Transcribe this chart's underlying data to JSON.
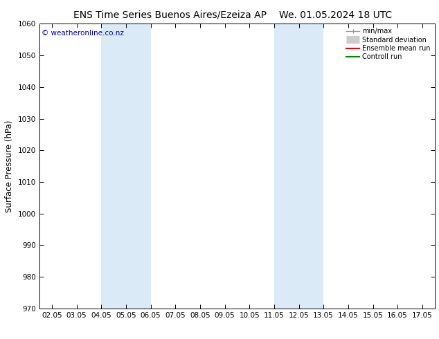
{
  "title_left": "ENS Time Series Buenos Aires/Ezeiza AP",
  "title_right": "We. 01.05.2024 18 UTC",
  "ylabel": "Surface Pressure (hPa)",
  "ylim": [
    970,
    1060
  ],
  "yticks": [
    970,
    980,
    990,
    1000,
    1010,
    1020,
    1030,
    1040,
    1050,
    1060
  ],
  "xtick_labels": [
    "02.05",
    "03.05",
    "04.05",
    "05.05",
    "06.05",
    "07.05",
    "08.05",
    "09.05",
    "10.05",
    "11.05",
    "12.05",
    "13.05",
    "14.05",
    "15.05",
    "16.05",
    "17.05"
  ],
  "xtick_positions": [
    0,
    1,
    2,
    3,
    4,
    5,
    6,
    7,
    8,
    9,
    10,
    11,
    12,
    13,
    14,
    15
  ],
  "xlim": [
    -0.5,
    15.5
  ],
  "shaded_regions": [
    {
      "x_start": 2,
      "x_end": 4,
      "color": "#daeaf7"
    },
    {
      "x_start": 9,
      "x_end": 11,
      "color": "#daeaf7"
    }
  ],
  "watermark": "© weatheronline.co.nz",
  "watermark_color": "#0000cc",
  "background_color": "#ffffff",
  "legend_entries": [
    {
      "label": "min/max",
      "color": "#999999",
      "linestyle": "-",
      "linewidth": 1.0,
      "type": "minmax"
    },
    {
      "label": "Standard deviation",
      "color": "#cccccc",
      "linestyle": "-",
      "linewidth": 8,
      "type": "band"
    },
    {
      "label": "Ensemble mean run",
      "color": "#ff0000",
      "linestyle": "-",
      "linewidth": 1.5,
      "type": "line"
    },
    {
      "label": "Controll run",
      "color": "#008800",
      "linestyle": "-",
      "linewidth": 1.5,
      "type": "line"
    }
  ],
  "title_fontsize": 10,
  "tick_fontsize": 7.5,
  "ylabel_fontsize": 8.5,
  "border_color": "#000000",
  "fig_bg_color": "#ffffff"
}
